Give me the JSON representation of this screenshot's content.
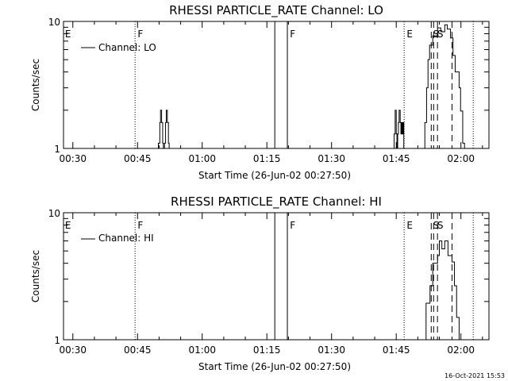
{
  "chart_data": [
    {
      "type": "line",
      "title": "RHESSI PARTICLE_RATE Channel: LO",
      "xlabel": "Start Time (26-Jun-02 00:27:50)",
      "ylabel": "Counts/sec",
      "yscale": "log",
      "ylim": [
        1,
        10
      ],
      "xlim": [
        "00:27:50",
        "02:06:30"
      ],
      "xticks": [
        "00:30",
        "00:45",
        "01:00",
        "01:15",
        "01:30",
        "01:45",
        "02:00"
      ],
      "yticks": [
        "1",
        "10"
      ],
      "legend": {
        "label": "Channel: LO",
        "position": "top-left"
      },
      "series": [
        {
          "name": "Channel: LO",
          "step": true,
          "points": [
            [
              "00:27:50",
              0
            ],
            [
              "00:49:50",
              1.1
            ],
            [
              "00:50:10",
              1.6
            ],
            [
              "00:50:20",
              2
            ],
            [
              "00:50:35",
              1.6
            ],
            [
              "00:50:50",
              1.1
            ],
            [
              "00:51:00",
              0
            ],
            [
              "00:51:15",
              1.1
            ],
            [
              "00:51:30",
              1.6
            ],
            [
              "00:51:40",
              2
            ],
            [
              "00:51:55",
              1.6
            ],
            [
              "00:52:10",
              1.1
            ],
            [
              "00:52:20",
              0
            ],
            [
              "01:44:30",
              1.3
            ],
            [
              "01:44:45",
              2
            ],
            [
              "01:45:00",
              1.3
            ],
            [
              "01:45:10",
              0
            ],
            [
              "01:45:20",
              1.3
            ],
            [
              "01:45:30",
              1.6
            ],
            [
              "01:45:40",
              2
            ],
            [
              "01:45:55",
              1.6
            ],
            [
              "01:46:05",
              1.3
            ],
            [
              "01:46:15",
              1.6
            ],
            [
              "01:46:25",
              1.3
            ],
            [
              "01:46:35",
              1.6
            ],
            [
              "01:46:45",
              0
            ],
            [
              "01:51:38",
              1.6
            ],
            [
              "01:52:02",
              3.0
            ],
            [
              "01:52:22",
              5.0
            ],
            [
              "01:52:44",
              6.5
            ],
            [
              "01:53:28",
              7.7
            ],
            [
              "01:54:35",
              8.9
            ],
            [
              "01:55:20",
              8.3
            ],
            [
              "01:56:15",
              9.4
            ],
            [
              "01:56:50",
              8.7
            ],
            [
              "01:57:35",
              7.4
            ],
            [
              "01:58:10",
              5.4
            ],
            [
              "01:58:40",
              4.0
            ],
            [
              "01:59:35",
              3.0
            ],
            [
              "01:59:55",
              1.97
            ],
            [
              "02:00:25",
              1.1
            ],
            [
              "02:00:50",
              0
            ]
          ]
        }
      ],
      "markers": [
        {
          "time": "00:44:26",
          "style": "dotted"
        },
        {
          "time": "01:16:50",
          "style": "solid"
        },
        {
          "time": "01:19:45",
          "style": "solid"
        },
        {
          "time": "01:46:50",
          "style": "dotted"
        },
        {
          "time": "01:53:07",
          "style": "dashed"
        },
        {
          "time": "01:53:40",
          "style": "dashed"
        },
        {
          "time": "01:54:34",
          "style": "dashed"
        },
        {
          "time": "01:57:56",
          "style": "dashed"
        },
        {
          "time": "02:02:51",
          "style": "dotted"
        }
      ],
      "flags": [
        {
          "label": "E",
          "time": "00:28:00"
        },
        {
          "label": "F",
          "time": "00:44:50"
        },
        {
          "label": "F",
          "time": "01:20:10"
        },
        {
          "label": "E",
          "time": "01:47:15"
        },
        {
          "label": "S",
          "time": "01:53:20"
        },
        {
          "label": "S",
          "time": "01:54:20"
        }
      ]
    },
    {
      "type": "line",
      "title": "RHESSI PARTICLE_RATE Channel: HI",
      "xlabel": "Start Time (26-Jun-02 00:27:50)",
      "ylabel": "Counts/sec",
      "yscale": "log",
      "ylim": [
        1,
        10
      ],
      "xlim": [
        "00:27:50",
        "02:06:30"
      ],
      "xticks": [
        "00:30",
        "00:45",
        "01:00",
        "01:15",
        "01:30",
        "01:45",
        "02:00"
      ],
      "yticks": [
        "1",
        "10"
      ],
      "legend": {
        "label": "Channel: HI",
        "position": "top-left"
      },
      "series": [
        {
          "name": "Channel: HI",
          "step": true,
          "points": [
            [
              "00:27:50",
              0
            ],
            [
              "01:51:55",
              1.94
            ],
            [
              "01:52:50",
              2.66
            ],
            [
              "01:53:28",
              4.0
            ],
            [
              "01:54:35",
              4.6
            ],
            [
              "01:55:00",
              6.0
            ],
            [
              "01:55:35",
              5.2
            ],
            [
              "01:56:15",
              6.0
            ],
            [
              "01:57:00",
              4.6
            ],
            [
              "01:57:56",
              4.1
            ],
            [
              "01:58:30",
              2.66
            ],
            [
              "01:59:00",
              1.5
            ],
            [
              "01:59:35",
              0
            ]
          ]
        }
      ],
      "markers": [
        {
          "time": "00:44:26",
          "style": "dotted"
        },
        {
          "time": "01:16:50",
          "style": "solid"
        },
        {
          "time": "01:19:45",
          "style": "solid"
        },
        {
          "time": "01:46:50",
          "style": "dotted"
        },
        {
          "time": "01:53:07",
          "style": "dashed"
        },
        {
          "time": "01:53:40",
          "style": "dashed"
        },
        {
          "time": "01:54:34",
          "style": "dashed"
        },
        {
          "time": "01:57:56",
          "style": "dashed"
        },
        {
          "time": "02:02:51",
          "style": "dotted"
        }
      ],
      "flags": [
        {
          "label": "E",
          "time": "00:28:00"
        },
        {
          "label": "F",
          "time": "00:44:50"
        },
        {
          "label": "F",
          "time": "01:20:10"
        },
        {
          "label": "E",
          "time": "01:47:15"
        },
        {
          "label": "S",
          "time": "01:53:20"
        },
        {
          "label": "S",
          "time": "01:54:20"
        }
      ]
    }
  ],
  "footer": {
    "timestamp": "16-Oct-2021 15:53"
  }
}
